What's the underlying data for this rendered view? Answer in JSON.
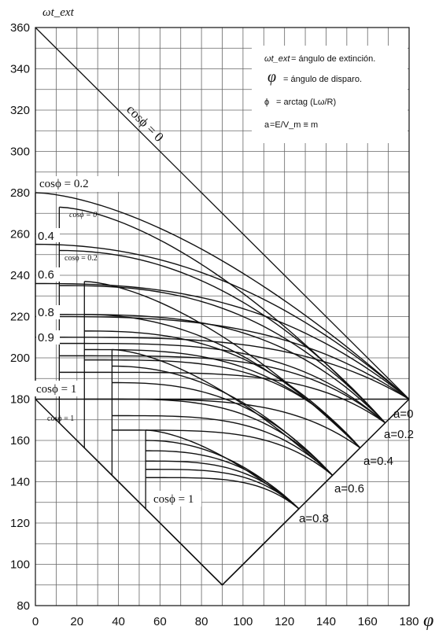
{
  "chart_data": {
    "type": "line",
    "title": "",
    "xlabel": "φ",
    "ylabel": "ωt_ext",
    "xlim": [
      0,
      180
    ],
    "ylim": [
      80,
      360
    ],
    "xticks": [
      0,
      20,
      40,
      60,
      80,
      100,
      120,
      140,
      160,
      180
    ],
    "yticks": [
      80,
      100,
      120,
      140,
      160,
      180,
      200,
      220,
      240,
      260,
      280,
      300,
      320,
      340,
      360
    ],
    "grid": true,
    "legend_position": "top-right",
    "legend": [
      {
        "symbol": "ωt_ext",
        "text": "= ángulo de extinción."
      },
      {
        "symbol": "φ",
        "text": "= ángulo de disparo."
      },
      {
        "symbol": "ϕ",
        "text": "= arctag (Lω/R)"
      },
      {
        "symbol": "a",
        "text": "=E/V_m ≡ m"
      }
    ],
    "a_labels": [
      "a=0",
      "a=0.2",
      "a=0.4",
      "a=0.6",
      "a=0.8"
    ],
    "cos_labels": [
      {
        "text": "cosϕ = 0",
        "size": "large"
      },
      {
        "text": "cosϕ = 0.2",
        "size": "large"
      },
      {
        "text": "0.4",
        "size": "large"
      },
      {
        "text": "0.6",
        "size": "large"
      },
      {
        "text": "0.8",
        "size": "large"
      },
      {
        "text": "0.9",
        "size": "large"
      },
      {
        "text": "cosϕ = 1",
        "size": "large"
      },
      {
        "text": "cosϕ = 0",
        "size": "small"
      },
      {
        "text": "cosϕ = 0.2",
        "size": "small"
      },
      {
        "text": "cosϕ = 1",
        "size": "small"
      },
      {
        "text": "cosϕ = 1",
        "size": "medium"
      }
    ],
    "families": [
      {
        "a": 0,
        "phi_start": 0,
        "end": [
          180,
          180
        ],
        "curves": [
          {
            "cos_phi": 0.2,
            "start_y": 280
          },
          {
            "cos_phi": 0.4,
            "start_y": 255
          },
          {
            "cos_phi": 0.6,
            "start_y": 236
          },
          {
            "cos_phi": 0.8,
            "start_y": 220
          },
          {
            "cos_phi": 0.9,
            "start_y": 210
          },
          {
            "cos_phi": 1,
            "start_y": 180
          }
        ]
      },
      {
        "a": 0.2,
        "phi_start": 11.5,
        "end": [
          168.5,
          168.5
        ],
        "curves": [
          {
            "cos_phi": 0,
            "start_y": 273
          },
          {
            "cos_phi": 0.2,
            "start_y": 252
          },
          {
            "cos_phi": 0.4,
            "start_y": 235
          },
          {
            "cos_phi": 0.6,
            "start_y": 221
          },
          {
            "cos_phi": 0.8,
            "start_y": 207
          },
          {
            "cos_phi": 0.9,
            "start_y": 201
          },
          {
            "cos_phi": 1,
            "start_y": 193
          }
        ]
      },
      {
        "a": 0.4,
        "phi_start": 23.6,
        "end": [
          156.4,
          156.4
        ],
        "curves": [
          {
            "cos_phi": 0.2,
            "start_y": 237
          },
          {
            "cos_phi": 0.4,
            "start_y": 221
          },
          {
            "cos_phi": 0.6,
            "start_y": 213
          },
          {
            "cos_phi": 0.8,
            "start_y": 204
          },
          {
            "cos_phi": 0.9,
            "start_y": 199
          },
          {
            "cos_phi": 1,
            "start_y": 180
          }
        ]
      },
      {
        "a": 0.6,
        "phi_start": 36.9,
        "end": [
          143.1,
          143.1
        ],
        "curves": [
          {
            "cos_phi": 0.2,
            "start_y": 204
          },
          {
            "cos_phi": 0.4,
            "start_y": 196
          },
          {
            "cos_phi": 0.6,
            "start_y": 188
          },
          {
            "cos_phi": 0.8,
            "start_y": 180
          },
          {
            "cos_phi": 0.9,
            "start_y": 172
          },
          {
            "cos_phi": 1,
            "start_y": 165
          }
        ]
      },
      {
        "a": 0.8,
        "phi_start": 53.1,
        "end": [
          126.9,
          126.9
        ],
        "curves": [
          {
            "cos_phi": 0.2,
            "start_y": 165
          },
          {
            "cos_phi": 0.4,
            "start_y": 160
          },
          {
            "cos_phi": 0.6,
            "start_y": 155
          },
          {
            "cos_phi": 0.8,
            "start_y": 150
          },
          {
            "cos_phi": 0.9,
            "start_y": 146
          },
          {
            "cos_phi": 1,
            "start_y": 142
          }
        ]
      }
    ]
  }
}
